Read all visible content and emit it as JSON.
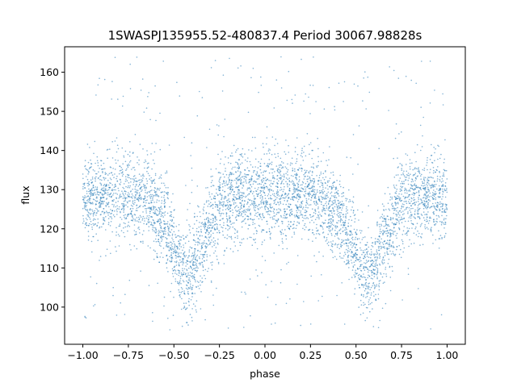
{
  "chart_data": {
    "type": "scatter",
    "title": "1SWASPJ135955.52-480837.4 Period 30067.98828s",
    "xlabel": "phase",
    "ylabel": "flux",
    "xlim": [
      -1.1,
      1.1
    ],
    "ylim": [
      90.5,
      166.5
    ],
    "xticks": [
      -1.0,
      -0.75,
      -0.5,
      -0.25,
      0.0,
      0.25,
      0.5,
      0.75,
      1.0
    ],
    "xtick_labels": [
      "−1.00",
      "−0.75",
      "−0.50",
      "−0.25",
      "0.00",
      "0.25",
      "0.50",
      "0.75",
      "1.00"
    ],
    "yticks": [
      100,
      110,
      120,
      130,
      140,
      150,
      160
    ],
    "ytick_labels": [
      "100",
      "110",
      "120",
      "130",
      "140",
      "150",
      "160"
    ],
    "grid": false,
    "marker_color": "#1f77b4",
    "series": [
      {
        "profile": {
          "x": [
            -1.0,
            -0.8,
            -0.65,
            -0.55,
            -0.48,
            -0.44,
            -0.4,
            -0.33,
            -0.25,
            -0.1,
            0.0,
            0.1,
            0.25,
            0.4,
            0.45,
            0.52,
            0.56,
            0.6,
            0.67,
            0.75,
            0.9,
            1.0
          ],
          "y": [
            128,
            128.5,
            128,
            122,
            112,
            107,
            109,
            118,
            127,
            128.5,
            128,
            128.5,
            128.5,
            124,
            119,
            111,
            107,
            109,
            118,
            127,
            128.5,
            128
          ]
        },
        "scatter_sd": 5.5,
        "y_range": [
          94,
          164
        ]
      }
    ]
  }
}
